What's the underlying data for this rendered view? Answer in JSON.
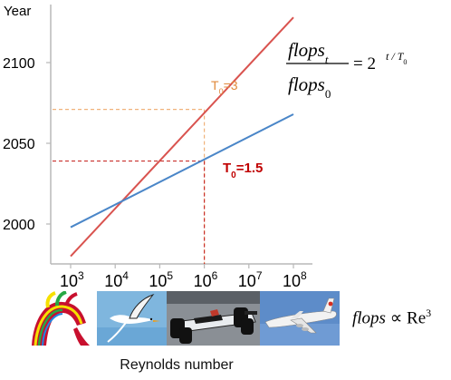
{
  "chart_data": {
    "type": "line",
    "xscale": "log",
    "xlim": [
      1000,
      100000000
    ],
    "ylim": [
      1975,
      2130
    ],
    "xticks": [
      {
        "base": "10",
        "exp": "3"
      },
      {
        "base": "10",
        "exp": "4"
      },
      {
        "base": "10",
        "exp": "5"
      },
      {
        "base": "10",
        "exp": "6"
      },
      {
        "base": "10",
        "exp": "7"
      },
      {
        "base": "10",
        "exp": "8"
      }
    ],
    "xtick_values": [
      1000,
      10000,
      100000,
      1000000,
      10000000,
      100000000
    ],
    "yticks": [
      "2000",
      "2050",
      "2100"
    ],
    "ytick_values": [
      2000,
      2050,
      2100
    ],
    "ylabel": "Year",
    "xlabel": "Reynolds number",
    "grid": false,
    "series": [
      {
        "name": "T0=3",
        "label_main": "T",
        "label_sub": "0",
        "label_tail": "=3",
        "color": "#d9534f",
        "x": [
          1000,
          100000000
        ],
        "y": [
          1980,
          2128
        ]
      },
      {
        "name": "T0=1.5",
        "label_main": "T",
        "label_sub": "0",
        "label_tail": "=1.5",
        "color": "#4a86c8",
        "x": [
          1000,
          100000000
        ],
        "y": [
          1998,
          2068
        ]
      }
    ],
    "reference_lines": {
      "x": 1000000,
      "orange_year": 2071,
      "red_year": 2039,
      "orange": "#f0b27a",
      "red": "#c9302c"
    },
    "annotation_colors": {
      "T0=3": "#e08a3c",
      "T0=1.5": "#c00000"
    }
  },
  "formula_main": {
    "num_main": "flops",
    "num_sub": "t",
    "den_main": "flops",
    "den_sub": "0",
    "rhs": "= 2",
    "exp_main": "t",
    "exp_sep": " / ",
    "exp_t": "T",
    "exp_sub": "0"
  },
  "formula_scaling": {
    "lhs": "flops",
    "rel": " ∝ Re",
    "exp": "3"
  },
  "images": [
    {
      "name": "aorta-flow-image"
    },
    {
      "name": "bird-image"
    },
    {
      "name": "race-car-image"
    },
    {
      "name": "airplane-image"
    }
  ]
}
